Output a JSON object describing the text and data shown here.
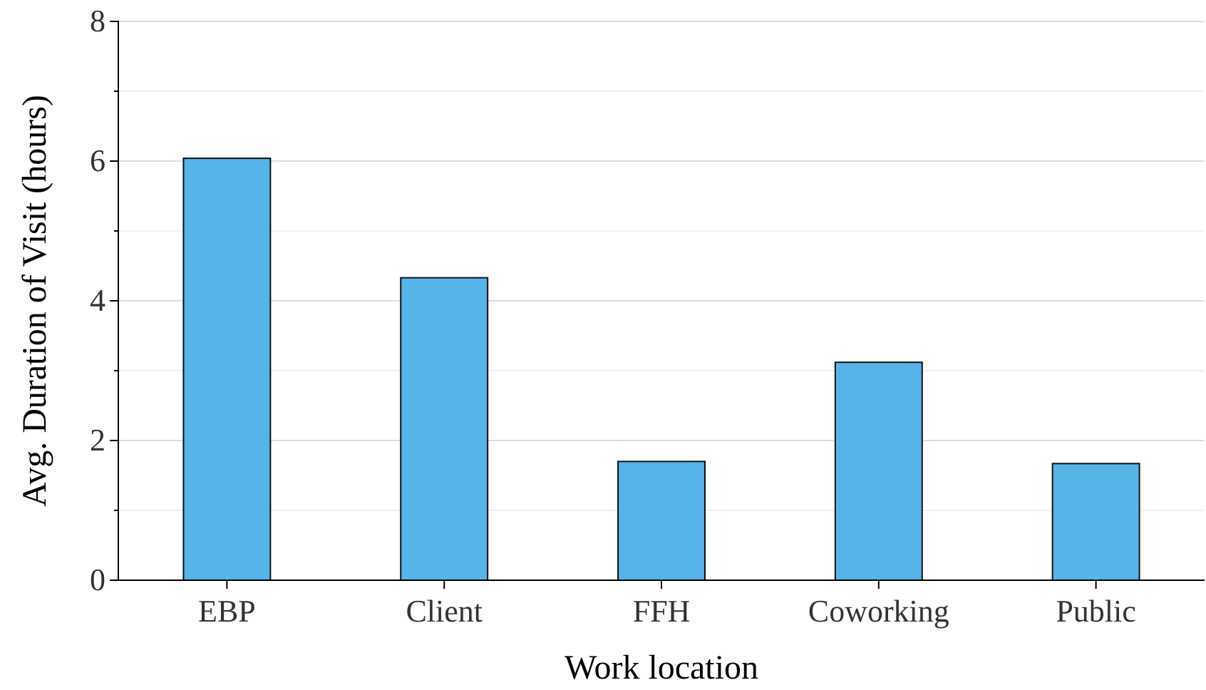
{
  "chart_data": {
    "type": "bar",
    "xlabel": "Work location",
    "ylabel": "Avg. Duration of Visit (hours)",
    "categories": [
      "EBP",
      "Client",
      "FFH",
      "Coworking",
      "Public"
    ],
    "values": [
      6.04,
      4.33,
      1.7,
      3.12,
      1.67
    ],
    "color": "#56b4e9",
    "ylim": [
      0,
      8
    ],
    "yticks": [
      0,
      {
        "value": 1,
        "label": null
      },
      2,
      {
        "value": 3,
        "label": null
      },
      4,
      {
        "value": 5,
        "label": null
      },
      6,
      {
        "value": 7,
        "label": null
      },
      8
    ],
    "grid": "y"
  }
}
